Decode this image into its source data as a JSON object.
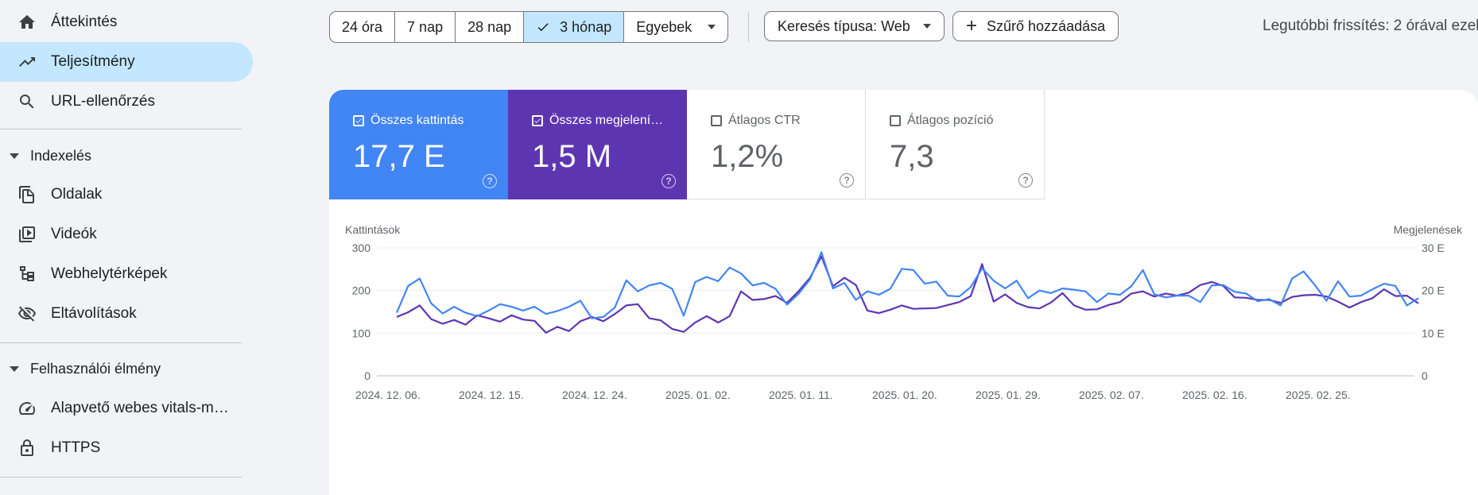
{
  "sidebar": {
    "items": [
      {
        "label": "Áttekintés",
        "icon": "home-icon"
      },
      {
        "label": "Teljesítmény",
        "icon": "trending-up-icon"
      },
      {
        "label": "URL-ellenőrzés",
        "icon": "search-icon"
      }
    ],
    "sections": [
      {
        "title": "Indexelés",
        "items": [
          {
            "label": "Oldalak",
            "icon": "pages-icon"
          },
          {
            "label": "Videók",
            "icon": "video-icon"
          },
          {
            "label": "Webhelytérképek",
            "icon": "sitemap-icon"
          },
          {
            "label": "Eltávolítások",
            "icon": "visibility-off-icon"
          }
        ]
      },
      {
        "title": "Felhasználói élmény",
        "items": [
          {
            "label": "Alapvető webes vitals-m…",
            "icon": "speed-icon"
          },
          {
            "label": "HTTPS",
            "icon": "lock-icon"
          }
        ]
      }
    ]
  },
  "toolbar": {
    "ranges": [
      "24 óra",
      "7 nap",
      "28 nap",
      "3 hónap",
      "Egyebek"
    ],
    "selected_range": "3 hónap",
    "search_type": "Keresés típusa: Web",
    "add_filter": "Szűrő hozzáadása",
    "last_update": "Legutóbbi frissítés: 2 órával ezel"
  },
  "metrics": [
    {
      "label": "Összes kattintás",
      "value": "17,7 E",
      "checked": true,
      "color": "#4285f4"
    },
    {
      "label": "Összes megjelení…",
      "value": "1,5 M",
      "checked": true,
      "color": "#5e35b1"
    },
    {
      "label": "Átlagos CTR",
      "value": "1,2%",
      "checked": false
    },
    {
      "label": "Átlagos pozíció",
      "value": "7,3",
      "checked": false
    }
  ],
  "chart_data": {
    "type": "line",
    "left_axis_label": "Kattintások",
    "right_axis_label": "Megjelenések",
    "left_ticks": [
      "0",
      "100",
      "200",
      "300"
    ],
    "right_ticks": [
      "0",
      "10 E",
      "20 E",
      "30 E"
    ],
    "ylim_left": [
      0,
      300
    ],
    "ylim_right": [
      0,
      30000
    ],
    "x_tick_labels": [
      "2024. 12. 06.",
      "2024. 12. 15.",
      "2024. 12. 24.",
      "2025. 01. 02.",
      "2025. 01. 11.",
      "2025. 01. 20.",
      "2025. 01. 29.",
      "2025. 02. 07.",
      "2025. 02. 16.",
      "2025. 02. 25."
    ],
    "grid": true,
    "series": [
      {
        "color": "#4285f4",
        "axis": "left",
        "values": [
          148,
          211,
          228,
          170,
          146,
          162,
          148,
          140,
          153,
          168,
          162,
          153,
          162,
          145,
          152,
          162,
          176,
          135,
          138,
          160,
          224,
          198,
          212,
          218,
          204,
          141,
          220,
          232,
          222,
          254,
          240,
          212,
          218,
          204,
          167,
          192,
          226,
          290,
          205,
          218,
          178,
          198,
          190,
          204,
          251,
          248,
          216,
          221,
          188,
          186,
          208,
          252,
          223,
          205,
          223,
          182,
          200,
          194,
          205,
          202,
          198,
          173,
          193,
          190,
          210,
          248,
          191,
          184,
          188,
          188,
          173,
          212,
          213,
          197,
          193,
          175,
          180,
          165,
          228,
          245,
          212,
          176,
          222,
          186,
          188,
          203,
          216,
          211,
          165,
          182
        ]
      },
      {
        "color": "#5e35b1",
        "axis": "right",
        "values": [
          13800,
          14900,
          16500,
          13300,
          12200,
          13100,
          12000,
          14200,
          13500,
          12700,
          14200,
          13200,
          12900,
          10100,
          11500,
          10500,
          12800,
          13800,
          12800,
          14500,
          16500,
          16800,
          13500,
          13000,
          11000,
          10300,
          12500,
          14000,
          12500,
          14000,
          19800,
          17800,
          18000,
          18700,
          17100,
          19800,
          23000,
          28000,
          21000,
          23000,
          21300,
          15300,
          14700,
          15500,
          16500,
          15700,
          15800,
          15900,
          16600,
          17300,
          18700,
          26200,
          17400,
          19100,
          17100,
          16100,
          15800,
          17200,
          19400,
          16500,
          15500,
          15600,
          16600,
          17300,
          19300,
          19800,
          18600,
          19300,
          18800,
          19500,
          21300,
          22000,
          21100,
          18400,
          18300,
          17800,
          17800,
          17100,
          18500,
          18900,
          19000,
          18600,
          17400,
          16000,
          17300,
          18200,
          20300,
          18700,
          18800,
          17000
        ]
      }
    ]
  }
}
